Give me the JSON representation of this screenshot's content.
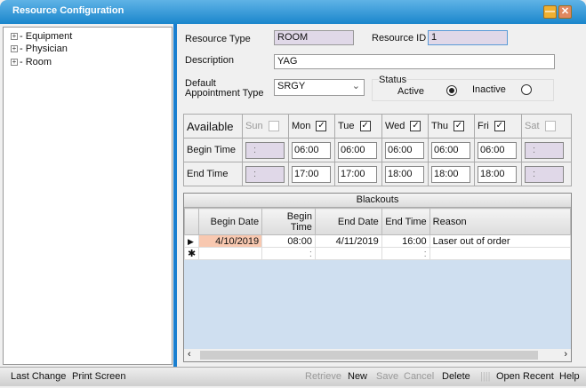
{
  "window": {
    "title": "Resource Configuration",
    "minimize": "—",
    "close": "✕"
  },
  "tree": {
    "items": [
      {
        "label": "Equipment"
      },
      {
        "label": "Physician"
      },
      {
        "label": "Room"
      }
    ],
    "expander": "+"
  },
  "form": {
    "resource_type_label": "Resource Type",
    "resource_type": "ROOM",
    "resource_id_label": "Resource ID",
    "resource_id": "1",
    "description_label": "Description",
    "description": "YAG",
    "appt_type_label": "Default Appointment Type",
    "appt_type": "SRGY",
    "status_label": "Status",
    "active_label": "Active",
    "inactive_label": "Inactive",
    "status": "Active"
  },
  "availability": {
    "header": "Available",
    "begin_label": "Begin Time",
    "end_label": "End Time",
    "days": [
      {
        "name": "Sun",
        "checked": false,
        "begin": ":",
        "end": ":"
      },
      {
        "name": "Mon",
        "checked": true,
        "begin": "06:00",
        "end": "17:00"
      },
      {
        "name": "Tue",
        "checked": true,
        "begin": "06:00",
        "end": "17:00"
      },
      {
        "name": "Wed",
        "checked": true,
        "begin": "06:00",
        "end": "18:00"
      },
      {
        "name": "Thu",
        "checked": true,
        "begin": "06:00",
        "end": "18:00"
      },
      {
        "name": "Fri",
        "checked": true,
        "begin": "06:00",
        "end": "18:00"
      },
      {
        "name": "Sat",
        "checked": false,
        "begin": ":",
        "end": ":"
      }
    ]
  },
  "blackouts": {
    "title": "Blackouts",
    "columns": [
      "Begin Date",
      "Begin Time",
      "End Date",
      "End Time",
      "Reason"
    ],
    "rows": [
      {
        "begin_date": "4/10/2019",
        "begin_time": "08:00",
        "end_date": "4/11/2019",
        "end_time": "16:00",
        "reason": "Laser out of order"
      }
    ],
    "new_row": {
      "begin_time": ":",
      "end_time": ":"
    }
  },
  "toolbar": {
    "last_change": "Last Change",
    "print_screen": "Print Screen",
    "retrieve": "Retrieve",
    "new": "New",
    "save": "Save",
    "cancel": "Cancel",
    "delete": "Delete",
    "open_recent": "Open Recent",
    "help": "Help"
  }
}
